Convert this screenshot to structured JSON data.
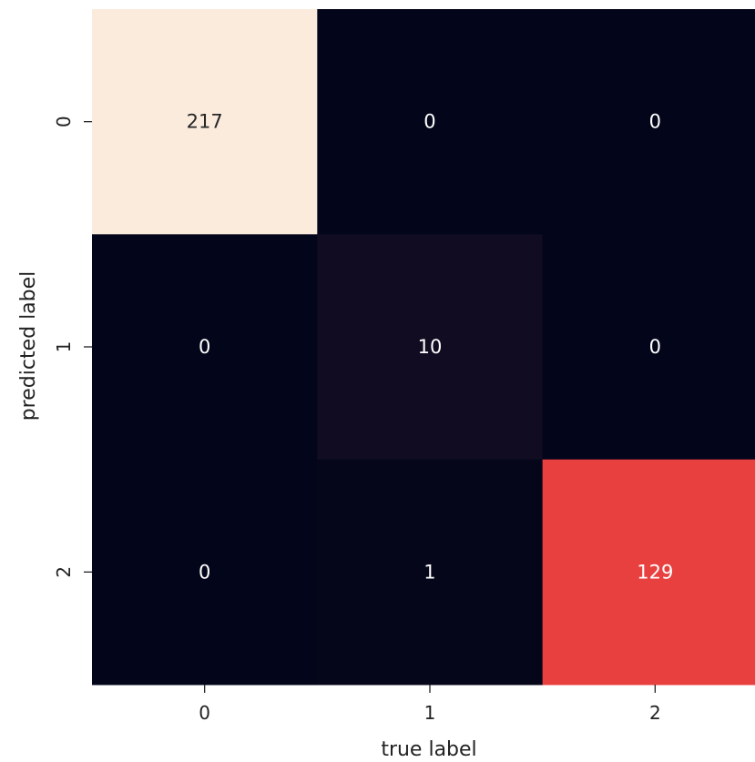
{
  "chart_data": {
    "type": "heatmap",
    "title": "",
    "xlabel": "true label",
    "ylabel": "predicted label",
    "x_categories": [
      "0",
      "1",
      "2"
    ],
    "y_categories": [
      "0",
      "1",
      "2"
    ],
    "values": [
      [
        217,
        0,
        0
      ],
      [
        0,
        10,
        0
      ],
      [
        0,
        1,
        129
      ]
    ],
    "colorscale": "rocket",
    "colorbar": false,
    "annotations": true,
    "cell_colors": [
      [
        "#faebdd",
        "#03051a",
        "#03051a"
      ],
      [
        "#03051a",
        "#110c21",
        "#03051a"
      ],
      [
        "#03051a",
        "#06061b",
        "#e83f3f"
      ]
    ],
    "annotation_colors": {
      "on_dark": "#ffffff",
      "on_light": "#262626"
    }
  }
}
